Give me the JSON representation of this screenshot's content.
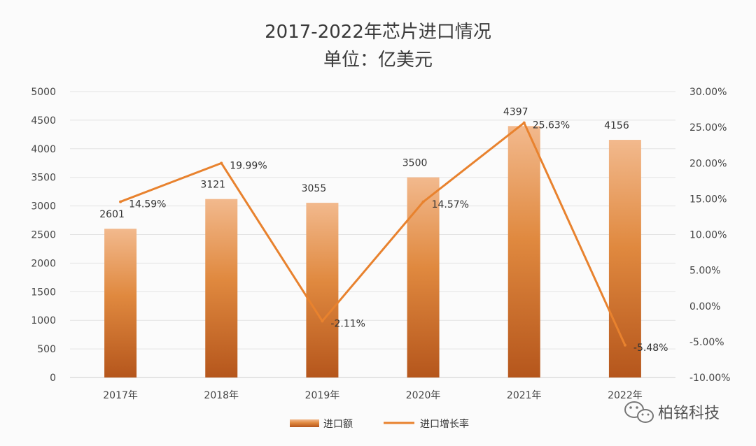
{
  "colors": {
    "bar_top": "#f2b98d",
    "bar_mid": "#e0893f",
    "bar_bottom": "#b5561c",
    "line": "#e8822e",
    "grid": "#e3e3e3",
    "axis": "#cccccc"
  },
  "chart_data": {
    "type": "bar",
    "title": "2017-2022年芯片进口情况",
    "subtitle": "单位：亿美元",
    "categories": [
      "2017年",
      "2018年",
      "2019年",
      "2020年",
      "2021年",
      "2022年"
    ],
    "series": [
      {
        "name": "进口额",
        "type": "bar",
        "axis": "left",
        "values": [
          2601,
          3121,
          3055,
          3500,
          4397,
          4156
        ],
        "labels": [
          "2601",
          "3121",
          "3055",
          "3500",
          "4397",
          "4156"
        ]
      },
      {
        "name": "进口增长率",
        "type": "line",
        "axis": "right",
        "values": [
          14.59,
          19.99,
          -2.11,
          14.57,
          25.63,
          -5.48
        ],
        "labels": [
          "14.59%",
          "19.99%",
          "-2.11%",
          "14.57%",
          "25.63%",
          "-5.48%"
        ]
      }
    ],
    "y_left": {
      "lim": [
        0,
        5000
      ],
      "ticks": [
        "0",
        "500",
        "1000",
        "1500",
        "2000",
        "2500",
        "3000",
        "3500",
        "4000",
        "4500",
        "5000"
      ]
    },
    "y_right": {
      "lim": [
        -10,
        30
      ],
      "ticks": [
        "-10.00%",
        "-5.00%",
        "0.00%",
        "5.00%",
        "10.00%",
        "15.00%",
        "20.00%",
        "25.00%",
        "30.00%"
      ]
    },
    "grid": true,
    "legend": "bottom"
  },
  "watermark": {
    "icon": "wechat-icon",
    "text": "柏铭科技"
  }
}
